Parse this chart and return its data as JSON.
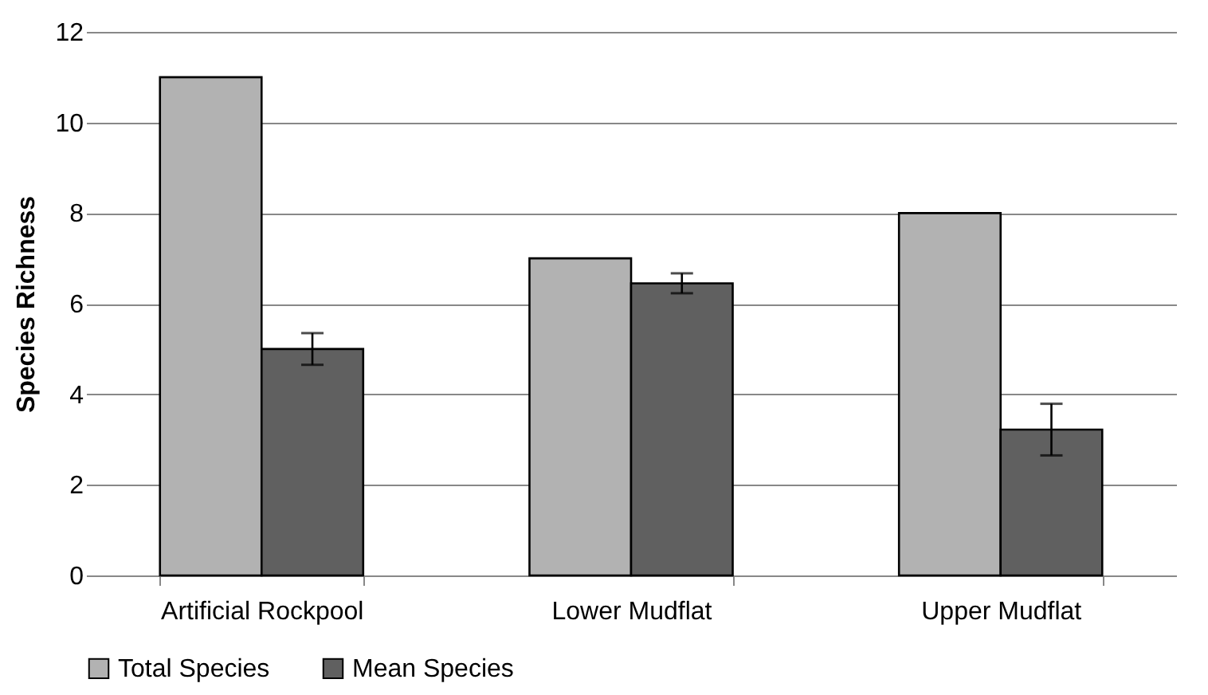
{
  "chart_data": {
    "type": "bar",
    "ylabel": "Species Richness",
    "categories": [
      "Artificial Rockpool",
      "Lower Mudflat",
      "Upper Mudflat"
    ],
    "series": [
      {
        "name": "Total Species",
        "color": "#b2b2b2",
        "values": [
          11,
          7,
          8
        ]
      },
      {
        "name": "Mean Species",
        "color": "#606060",
        "values": [
          5.0,
          6.45,
          3.22
        ],
        "errors": [
          0.35,
          0.22,
          0.57
        ]
      }
    ],
    "ylim": [
      0,
      12
    ],
    "yticks": [
      0,
      2,
      4,
      6,
      8,
      10,
      12
    ],
    "grid": "y",
    "legend": "bottom"
  }
}
